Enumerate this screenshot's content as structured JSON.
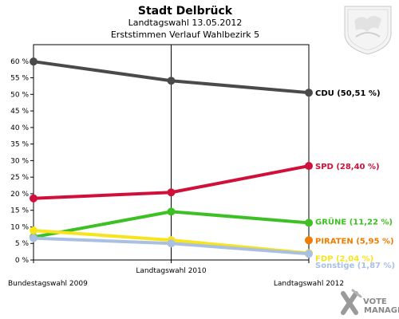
{
  "chart_data": {
    "type": "line",
    "title": "Stadt Delbrück",
    "subtitle_1": "Landtagswahl 13.05.2012",
    "subtitle_2": "Erststimmen Verlauf Wahlbezirk 5",
    "x_categories": [
      "Bundestagswahl 2009",
      "Landtagswahl 2010",
      "Landtagswahl 2012"
    ],
    "ylim": [
      0,
      65
    ],
    "y_ticks": [
      0,
      5,
      10,
      15,
      20,
      25,
      30,
      35,
      40,
      45,
      50,
      55,
      60
    ],
    "y_tick_suffix": " %",
    "grid": false,
    "series": [
      {
        "name": "CDU",
        "color": "#4a4a4a",
        "values": [
          59.9,
          54.1,
          50.51
        ],
        "end_label": "CDU (50,51 %)"
      },
      {
        "name": "SPD",
        "color": "#d0103a",
        "values": [
          18.6,
          20.4,
          28.4
        ],
        "end_label": "SPD (28,40 %)"
      },
      {
        "name": "GRÜNE",
        "color": "#3cc023",
        "values": [
          6.9,
          14.6,
          11.22
        ],
        "end_label": "GRÜNE (11,22 %)"
      },
      {
        "name": "PIRATEN",
        "color": "#f07d00",
        "values": [
          null,
          null,
          5.95
        ],
        "end_label": "PIRATEN (5,95 %)"
      },
      {
        "name": "FDP",
        "color": "#f8e41c",
        "values": [
          8.9,
          6.0,
          2.04
        ],
        "end_label": "FDP (2,04 %)"
      },
      {
        "name": "Sonstige",
        "color": "#a9c0e3",
        "values": [
          6.6,
          5.0,
          1.87
        ],
        "end_label": "Sonstige (1,87 %)"
      }
    ]
  },
  "branding": {
    "vote_manager": [
      "VOTE",
      "MANAGER"
    ]
  }
}
